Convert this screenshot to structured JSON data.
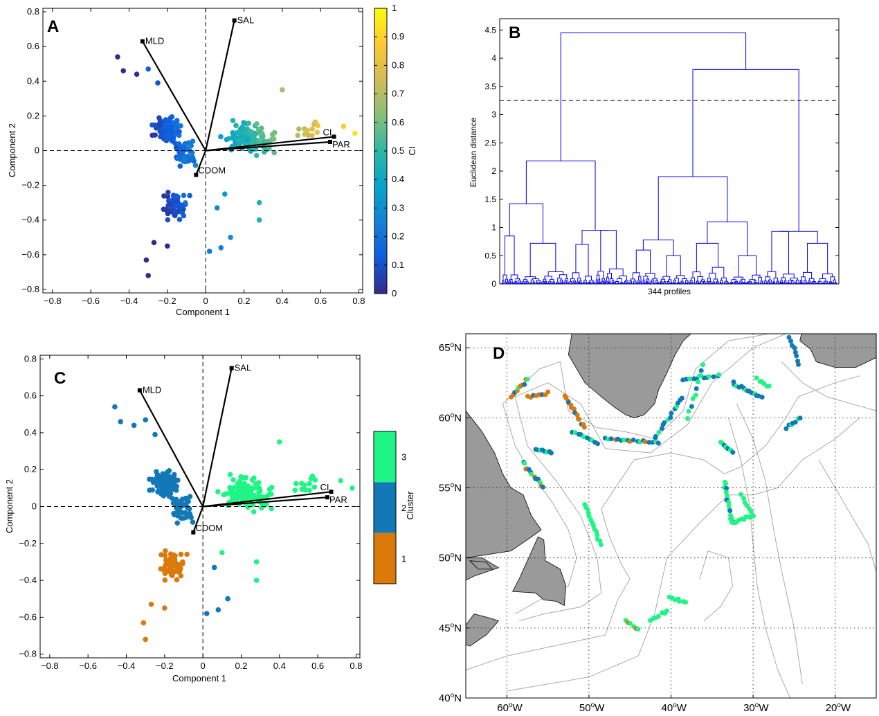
{
  "chart_data": [
    {
      "panel": "A",
      "type": "scatter",
      "xlabel": "Component 1",
      "ylabel": "Component 2",
      "xlim": [
        -0.85,
        0.82
      ],
      "ylim": [
        -0.82,
        0.82
      ],
      "xticks": [
        -0.8,
        -0.6,
        -0.4,
        -0.2,
        0,
        0.2,
        0.4,
        0.6,
        0.8
      ],
      "yticks": [
        -0.8,
        -0.6,
        -0.4,
        -0.2,
        0,
        0.2,
        0.4,
        0.6,
        0.8
      ],
      "x_tick_labels": [
        "−0.8",
        "−0.6",
        "−0.4",
        "−0.2",
        "0",
        "0.2",
        "0.4",
        "0.6",
        "0.8"
      ],
      "y_tick_labels": [
        "−0.8",
        "−0.6",
        "−0.4",
        "−0.2",
        "0",
        "0.2",
        "0.4",
        "0.6",
        "0.8"
      ],
      "color_by": "CI",
      "colorbar": {
        "label": "CI",
        "range": [
          0,
          1
        ],
        "ticks": [
          "0",
          "0.1",
          "0.2",
          "0.3",
          "0.4",
          "0.5",
          "0.6",
          "0.7",
          "0.8",
          "0.9",
          "1"
        ],
        "colors": [
          "#352a87",
          "#0f5cdd",
          "#1481d6",
          "#06a4ca",
          "#2eb7a4",
          "#87bf77",
          "#d1bb59",
          "#fec832",
          "#f9fb0e"
        ]
      },
      "loadings": [
        {
          "label": "MLD",
          "x": -0.33,
          "y": 0.63
        },
        {
          "label": "SAL",
          "x": 0.15,
          "y": 0.75
        },
        {
          "label": "CI",
          "x": 0.67,
          "y": 0.08
        },
        {
          "label": "PAR",
          "x": 0.65,
          "y": 0.05
        },
        {
          "label": "CDOM",
          "x": -0.05,
          "y": -0.14
        }
      ],
      "reference_lines": {
        "x": 0,
        "y": 0
      }
    },
    {
      "panel": "B",
      "type": "dendrogram",
      "xlabel": "344 profiles",
      "ylabel": "Euclidean distance",
      "ylim": [
        0,
        4.7
      ],
      "yticks": [
        "0",
        "0.5",
        "1",
        "1.5",
        "2",
        "2.5",
        "3",
        "3.5",
        "4",
        "4.5"
      ],
      "cut_height": 3.25,
      "n_leaves": 344,
      "merges": [
        {
          "height": 4.45,
          "between": [
            "left group",
            "right group"
          ]
        },
        {
          "height": 3.8,
          "between": [
            "middle group",
            "far-right group"
          ]
        },
        {
          "height": 2.18,
          "between": [
            "left-1",
            "left-2"
          ]
        },
        {
          "height": 1.9,
          "between": [
            "middle-1",
            "middle-2"
          ]
        },
        {
          "height": 1.42,
          "between": [
            "left-1a",
            "left-1b"
          ]
        },
        {
          "height": 1.1,
          "between": [
            "right-1a",
            "right-1b"
          ]
        },
        {
          "height": 0.95,
          "between": [
            "left-2a",
            "left-2b"
          ]
        },
        {
          "height": 0.93,
          "between": [
            "right-2a",
            "right-2b"
          ]
        },
        {
          "height": 0.85,
          "between": [
            "left-1a-i",
            "left-1a-ii"
          ]
        },
        {
          "height": 0.78,
          "between": [
            "middle-1a",
            "middle-1b"
          ]
        }
      ],
      "line_color": "#0000ee"
    },
    {
      "panel": "C",
      "type": "scatter",
      "xlabel": "Component 1",
      "ylabel": "Component 2",
      "xlim": [
        -0.85,
        0.82
      ],
      "ylim": [
        -0.82,
        0.82
      ],
      "xticks": [
        -0.8,
        -0.6,
        -0.4,
        -0.2,
        0,
        0.2,
        0.4,
        0.6,
        0.8
      ],
      "yticks": [
        -0.8,
        -0.6,
        -0.4,
        -0.2,
        0,
        0.2,
        0.4,
        0.6,
        0.8
      ],
      "x_tick_labels": [
        "−0.8",
        "−0.6",
        "−0.4",
        "−0.2",
        "0",
        "0.2",
        "0.4",
        "0.6",
        "0.8"
      ],
      "y_tick_labels": [
        "−0.8",
        "−0.6",
        "−0.4",
        "−0.2",
        "0",
        "0.2",
        "0.4",
        "0.6",
        "0.8"
      ],
      "color_by": "Cluster",
      "colorbar": {
        "label": "Cluster",
        "categories": [
          {
            "label": "1",
            "color": "#d97a0b"
          },
          {
            "label": "2",
            "color": "#1278b8"
          },
          {
            "label": "3",
            "color": "#1ef585"
          }
        ]
      },
      "loadings": [
        {
          "label": "MLD",
          "x": -0.33,
          "y": 0.63
        },
        {
          "label": "SAL",
          "x": 0.15,
          "y": 0.75
        },
        {
          "label": "CI",
          "x": 0.67,
          "y": 0.08
        },
        {
          "label": "PAR",
          "x": 0.65,
          "y": 0.05
        },
        {
          "label": "CDOM",
          "x": -0.05,
          "y": -0.14
        }
      ],
      "reference_lines": {
        "x": 0,
        "y": 0
      }
    },
    {
      "panel": "D",
      "type": "map",
      "lon_range": [
        -65,
        -15
      ],
      "lat_range": [
        40,
        66
      ],
      "lon_ticks": [
        -60,
        -50,
        -40,
        -30,
        -20
      ],
      "lat_ticks": [
        45,
        50,
        55,
        60,
        65
      ],
      "lon_tick_labels": [
        "60",
        "50",
        "40",
        "30",
        "20"
      ],
      "lat_tick_labels": [
        "45",
        "50",
        "55",
        "60",
        "65"
      ],
      "lon_hemisphere": "W",
      "lat_hemisphere": "N",
      "degree_symbol": "o",
      "land_color": "#9a9a9a",
      "contour_color": "#a8a8a8",
      "cluster_colors": {
        "1": "#d97a0b",
        "2": "#1278b8",
        "3": "#1ef585"
      }
    }
  ],
  "panels": {
    "A": {
      "letter": "A",
      "vector_labels": [
        "MLD",
        "SAL",
        "CI",
        "PAR",
        "CDOM"
      ]
    },
    "B": {
      "letter": "B"
    },
    "C": {
      "letter": "C",
      "vector_labels": [
        "MLD",
        "SAL",
        "CI",
        "PAR",
        "CDOM"
      ]
    },
    "D": {
      "letter": "D"
    }
  }
}
